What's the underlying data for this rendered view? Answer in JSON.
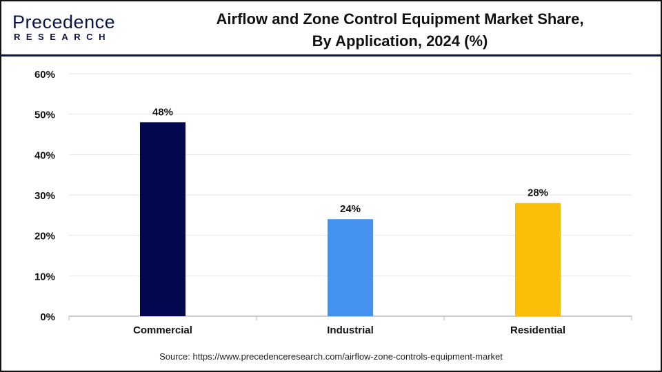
{
  "logo": {
    "line1": "Precedence",
    "line2": "RESEARCH"
  },
  "title_line1": "Airflow and Zone Control Equipment Market Share,",
  "title_line2": "By Application, 2024 (%)",
  "source": "Source: https://www.precedenceresearch.com/airflow-zone-controls-equipment-market",
  "chart_data": {
    "type": "bar",
    "title": "Airflow and Zone Control Equipment Market Share, By Application, 2024 (%)",
    "categories": [
      "Commercial",
      "Industrial",
      "Residential"
    ],
    "values": [
      48,
      24,
      28
    ],
    "data_labels": [
      "48%",
      "24%",
      "28%"
    ],
    "colors": [
      "#020750",
      "#4492ee",
      "#fbbf0a"
    ],
    "ylim": [
      0,
      60
    ],
    "yticks": [
      0,
      10,
      20,
      30,
      40,
      50,
      60
    ],
    "ytick_labels": [
      "0%",
      "10%",
      "20%",
      "30%",
      "40%",
      "50%",
      "60%"
    ],
    "grid": true,
    "xlabel": "",
    "ylabel": ""
  }
}
